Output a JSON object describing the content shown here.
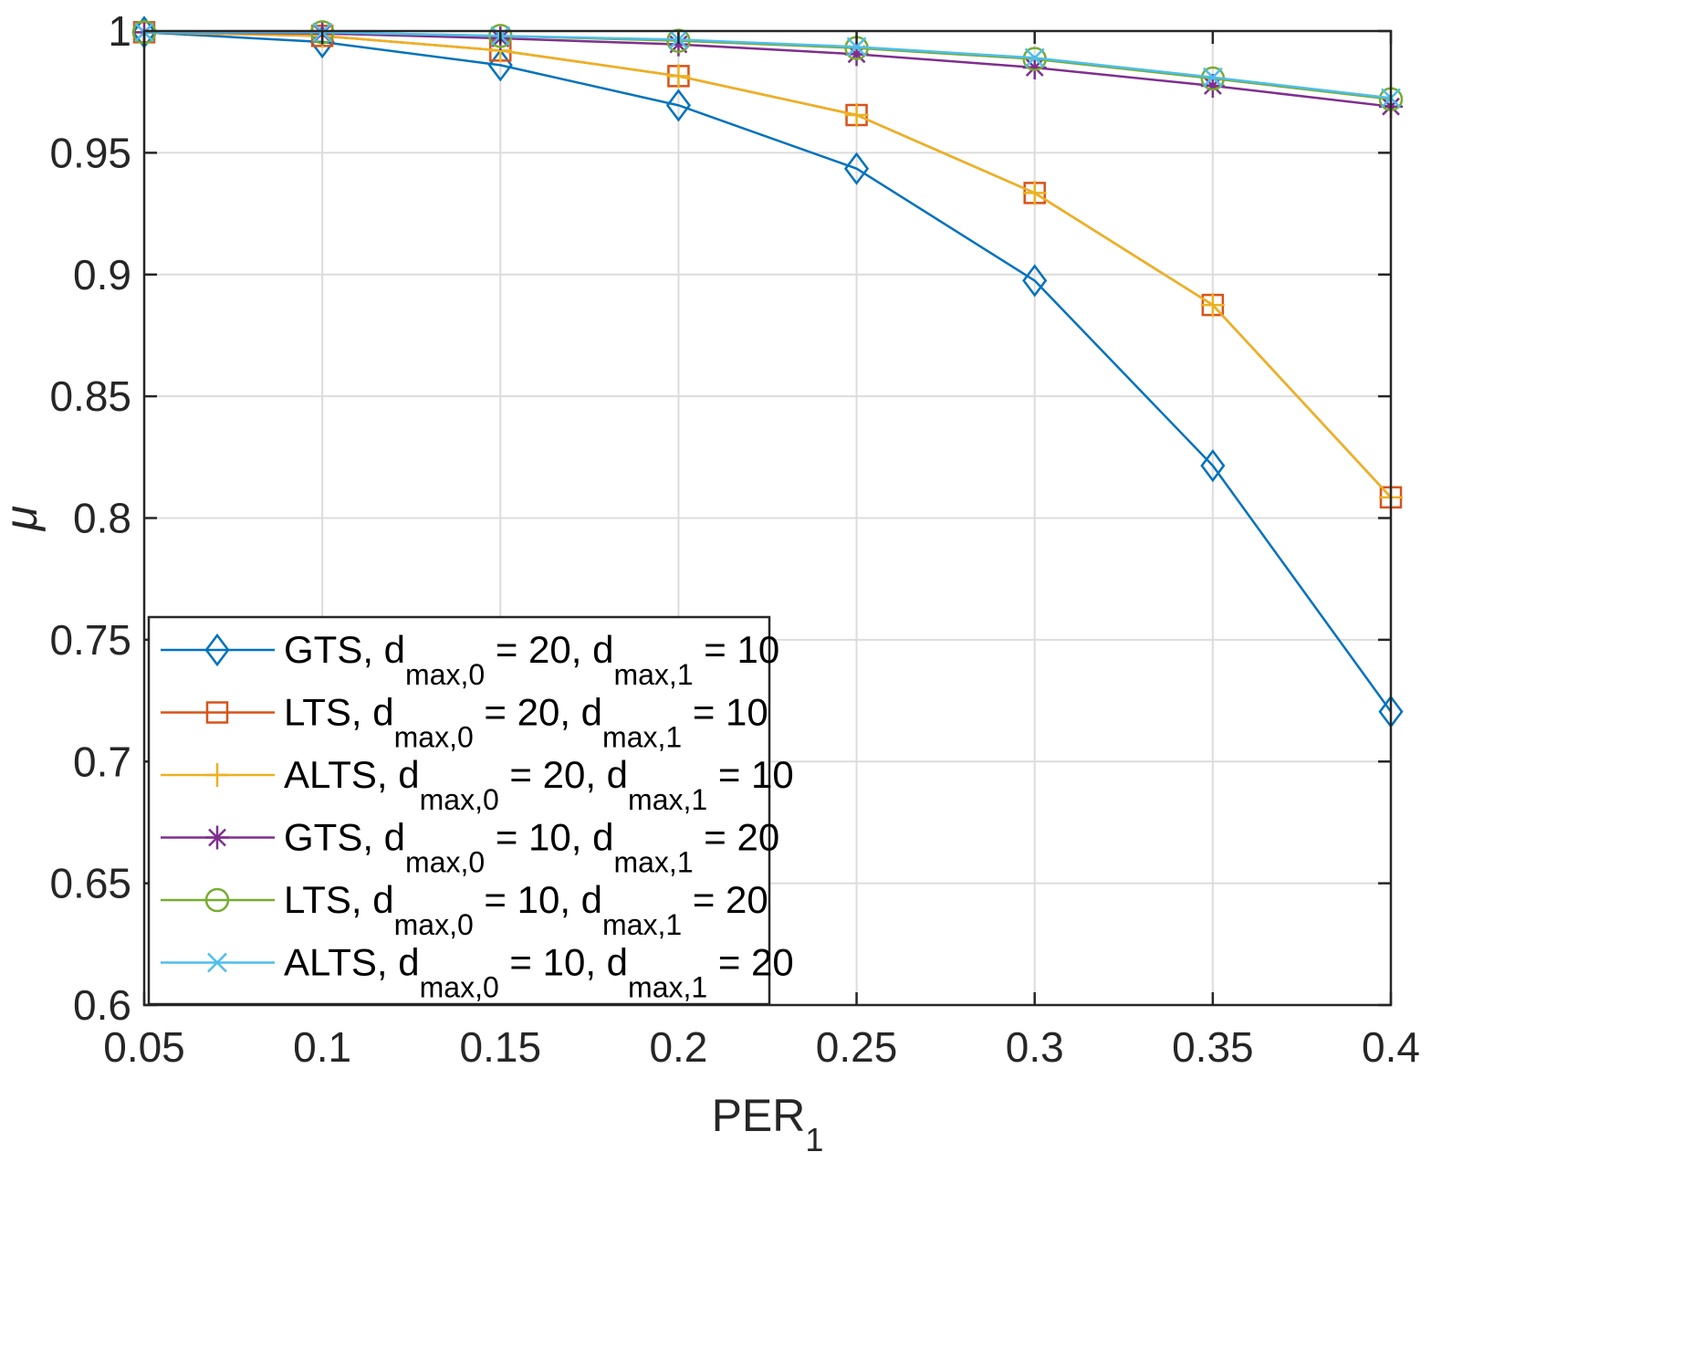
{
  "chart_data": {
    "type": "line",
    "title": "",
    "xlabel": "PER",
    "xlabel_subscript": "1",
    "ylabel": "μ",
    "xlim": [
      0.05,
      0.4
    ],
    "ylim": [
      0.6,
      1.0
    ],
    "grid": true,
    "legend_location": "bottom-left",
    "x_ticks": [
      "0.05",
      "0.1",
      "0.15",
      "0.2",
      "0.25",
      "0.3",
      "0.35",
      "0.4"
    ],
    "y_ticks": [
      "0.6",
      "0.65",
      "0.7",
      "0.75",
      "0.8",
      "0.85",
      "0.9",
      "0.95",
      "1"
    ],
    "x": [
      0.05,
      0.1,
      0.15,
      0.2,
      0.25,
      0.3,
      0.35,
      0.4
    ],
    "series": [
      {
        "name": "GTS, d max,0 = 20, d max,1 = 10",
        "legend_parts": [
          "GTS, d",
          "max,0",
          " = 20, d",
          "max,1",
          " = 10"
        ],
        "color": "#0072BD",
        "marker": "diamond",
        "values": [
          0.9995,
          0.9955,
          0.986,
          0.9695,
          0.9435,
          0.8975,
          0.8215,
          0.7205
        ]
      },
      {
        "name": "LTS, d max,0 = 20, d max,1 = 10",
        "legend_parts": [
          "LTS, d",
          "max,0",
          " = 20, d",
          "max,1",
          " = 10"
        ],
        "color": "#D95319",
        "marker": "square",
        "values": [
          0.9995,
          0.998,
          0.992,
          0.9815,
          0.9655,
          0.9335,
          0.8875,
          0.8085
        ]
      },
      {
        "name": "ALTS, d max,0 = 20, d max,1 = 10",
        "legend_parts": [
          "ALTS, d",
          "max,0",
          " = 20, d",
          "max,1",
          " = 10"
        ],
        "color": "#EDB120",
        "marker": "plus",
        "values": [
          0.9995,
          0.998,
          0.992,
          0.9815,
          0.9655,
          0.9335,
          0.8875,
          0.8085
        ]
      },
      {
        "name": "GTS, d max,0 = 10, d max,1 = 20",
        "legend_parts": [
          "GTS, d",
          "max,0",
          " = 10, d",
          "max,1",
          " = 20"
        ],
        "color": "#7E2F8E",
        "marker": "asterisk",
        "values": [
          0.9995,
          0.999,
          0.997,
          0.9945,
          0.9905,
          0.985,
          0.9775,
          0.969
        ]
      },
      {
        "name": "LTS, d max,0 = 10, d max,1 = 20",
        "legend_parts": [
          "LTS, d",
          "max,0",
          " = 10, d",
          "max,1",
          " = 20"
        ],
        "color": "#77AC30",
        "marker": "circle",
        "values": [
          0.9995,
          0.9995,
          0.998,
          0.996,
          0.993,
          0.9885,
          0.9805,
          0.972
        ]
      },
      {
        "name": "ALTS, d max,0 = 10, d max,1 = 20",
        "legend_parts": [
          "ALTS, d",
          "max,0",
          " = 10, d",
          "max,1",
          " = 20"
        ],
        "color": "#4DBEEE",
        "marker": "x",
        "values": [
          0.9995,
          0.9995,
          0.998,
          0.9965,
          0.9935,
          0.989,
          0.981,
          0.9725
        ]
      }
    ]
  }
}
